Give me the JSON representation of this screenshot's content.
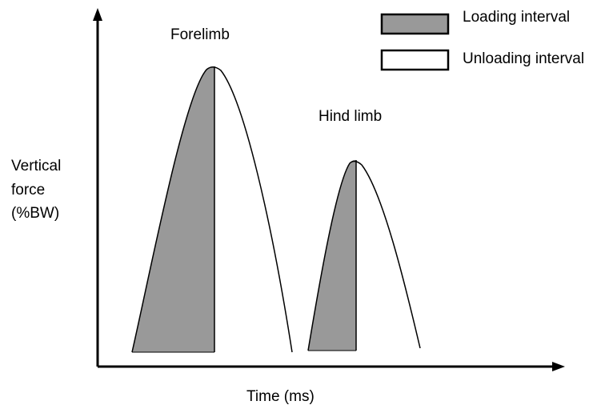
{
  "labels": {
    "forelimb": "Forelimb",
    "hind_limb": "Hind limb"
  },
  "legend": [
    {
      "label": "Loading interval"
    },
    {
      "label": "Unloading interval"
    }
  ],
  "y_axis": {
    "label_lines": [
      "Vertical",
      "force",
      "(%BW)"
    ]
  },
  "x_axis": {
    "label": "Time (ms)"
  }
}
